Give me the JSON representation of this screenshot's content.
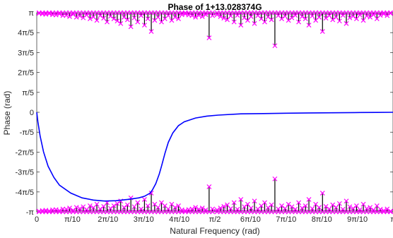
{
  "chart_data": {
    "type": "line",
    "title": "Phase of 1+13.028374G",
    "xlabel": "Natural Frequency (rad)",
    "ylabel": "Phase (rad)",
    "xlim": [
      0,
      3.14159
    ],
    "ylim": [
      -3.14159,
      3.14159
    ],
    "grid": false,
    "x_ticks": [
      {
        "v": 0,
        "label": "0"
      },
      {
        "v": 0.314159,
        "label": "π/10"
      },
      {
        "v": 0.628319,
        "label": "2π/10"
      },
      {
        "v": 0.942478,
        "label": "3π/10"
      },
      {
        "v": 1.256637,
        "label": "4π/10"
      },
      {
        "v": 1.570796,
        "label": "π/2"
      },
      {
        "v": 1.884956,
        "label": "6π/10"
      },
      {
        "v": 2.199115,
        "label": "7π/10"
      },
      {
        "v": 2.513274,
        "label": "8π/10"
      },
      {
        "v": 2.827433,
        "label": "9π/10"
      },
      {
        "v": 3.141593,
        "label": "π"
      }
    ],
    "y_ticks": [
      {
        "v": -3.141593,
        "label": "-π"
      },
      {
        "v": -2.513274,
        "label": "-4π/5"
      },
      {
        "v": -1.884956,
        "label": "-3π/5"
      },
      {
        "v": -1.256637,
        "label": "-2π/5"
      },
      {
        "v": -0.628319,
        "label": "-π/5"
      },
      {
        "v": 0,
        "label": "0"
      },
      {
        "v": 0.628319,
        "label": "π/5"
      },
      {
        "v": 1.256637,
        "label": "2π/5"
      },
      {
        "v": 1.884956,
        "label": "3π/5"
      },
      {
        "v": 2.513274,
        "label": "4π/5"
      },
      {
        "v": 3.141593,
        "label": "π"
      }
    ],
    "series": [
      {
        "style": "line",
        "color": "#0000ff",
        "x": [
          0,
          0.01,
          0.03,
          0.06,
          0.1,
          0.15,
          0.2,
          0.3,
          0.4,
          0.5,
          0.6,
          0.7,
          0.8,
          0.9,
          0.95,
          1.0,
          1.02,
          1.05,
          1.08,
          1.1,
          1.13,
          1.16,
          1.2,
          1.25,
          1.3,
          1.4,
          1.5,
          1.6,
          1.8,
          2.0,
          2.2,
          2.4,
          2.6,
          2.8,
          3.0,
          3.14159
        ],
        "y": [
          0,
          -0.3,
          -0.75,
          -1.25,
          -1.7,
          -2.05,
          -2.3,
          -2.55,
          -2.7,
          -2.77,
          -2.8,
          -2.79,
          -2.75,
          -2.7,
          -2.65,
          -2.55,
          -2.45,
          -2.25,
          -1.95,
          -1.7,
          -1.3,
          -0.95,
          -0.65,
          -0.42,
          -0.3,
          -0.18,
          -0.12,
          -0.09,
          -0.05,
          -0.04,
          -0.03,
          -0.02,
          -0.015,
          -0.01,
          -0.005,
          0
        ]
      },
      {
        "style": "markers",
        "marker": "x",
        "color": "#ff00ff",
        "stems": true,
        "stem_color": "#000000",
        "x": [
          0.02,
          0.05,
          0.08,
          0.11,
          0.14,
          0.17,
          0.2,
          0.23,
          0.26,
          0.29,
          0.32,
          0.35,
          0.38,
          0.41,
          0.44,
          0.47,
          0.5,
          0.53,
          0.56,
          0.59,
          0.62,
          0.65,
          0.68,
          0.71,
          0.74,
          0.77,
          0.8,
          0.83,
          0.86,
          0.89,
          0.92,
          0.95,
          0.98,
          1.01,
          1.04,
          1.07,
          1.1,
          1.13,
          1.16,
          1.19,
          1.22,
          1.25,
          1.28,
          1.31,
          1.34,
          1.37,
          1.4,
          1.43,
          1.46,
          1.49,
          1.52,
          1.55,
          1.59,
          1.62,
          1.65,
          1.68,
          1.71,
          1.74,
          1.77,
          1.8,
          1.83,
          1.86,
          1.89,
          1.92,
          1.95,
          1.98,
          2.01,
          2.04,
          2.07,
          2.1,
          2.13,
          2.16,
          2.19,
          2.22,
          2.25,
          2.28,
          2.31,
          2.34,
          2.37,
          2.4,
          2.43,
          2.46,
          2.49,
          2.52,
          2.55,
          2.58,
          2.61,
          2.64,
          2.67,
          2.7,
          2.73,
          2.76,
          2.79,
          2.82,
          2.85,
          2.88,
          2.91,
          2.94,
          2.97,
          3.0,
          3.03,
          3.06,
          3.09,
          3.12
        ],
        "y_top": [
          3.12,
          3.1,
          3.09,
          3.11,
          3.08,
          3.07,
          3.1,
          3.05,
          3.06,
          3.02,
          3.09,
          3.0,
          3.04,
          2.98,
          3.07,
          2.95,
          3.01,
          2.9,
          3.05,
          2.97,
          2.85,
          3.03,
          2.95,
          2.88,
          2.8,
          3.0,
          2.92,
          2.7,
          2.98,
          2.85,
          3.05,
          2.75,
          2.95,
          2.55,
          2.9,
          3.0,
          2.85,
          2.95,
          3.05,
          2.9,
          3.0,
          2.95,
          3.08,
          3.1,
          3.07,
          3.05,
          3.0,
          3.06,
          3.02,
          3.08,
          2.35,
          3.05,
          3.08,
          3.02,
          2.97,
          2.92,
          3.04,
          2.85,
          3.06,
          2.75,
          2.98,
          2.9,
          3.02,
          2.8,
          3.05,
          2.95,
          2.85,
          3.01,
          2.92,
          2.1,
          3.05,
          2.95,
          3.03,
          2.9,
          2.98,
          3.06,
          2.85,
          3.02,
          2.95,
          2.75,
          3.04,
          2.9,
          3.0,
          2.55,
          2.97,
          3.05,
          2.92,
          3.0,
          2.88,
          3.06,
          2.8,
          2.98,
          3.03,
          2.95,
          3.07,
          2.9,
          3.04,
          3.0,
          3.08,
          2.95,
          3.06,
          3.1,
          3.05,
          3.12
        ],
        "y_bottom": [
          -3.12,
          -3.1,
          -3.09,
          -3.11,
          -3.08,
          -3.07,
          -3.1,
          -3.05,
          -3.06,
          -3.02,
          -3.09,
          -3.0,
          -3.04,
          -2.98,
          -3.07,
          -2.95,
          -3.01,
          -2.9,
          -3.05,
          -2.97,
          -2.85,
          -3.03,
          -2.95,
          -2.88,
          -2.8,
          -3.0,
          -2.92,
          -2.7,
          -2.98,
          -2.85,
          -3.05,
          -2.75,
          -2.95,
          -2.55,
          -2.9,
          -3.0,
          -2.85,
          -2.95,
          -3.05,
          -2.9,
          -3.0,
          -2.95,
          -3.08,
          -3.1,
          -3.07,
          -3.05,
          -3.0,
          -3.06,
          -3.02,
          -3.08,
          -2.35,
          -3.05,
          -3.08,
          -3.02,
          -2.97,
          -2.92,
          -3.04,
          -2.85,
          -3.06,
          -2.75,
          -2.98,
          -2.9,
          -3.02,
          -2.8,
          -3.05,
          -2.95,
          -2.85,
          -3.01,
          -2.92,
          -2.1,
          -3.05,
          -2.95,
          -3.03,
          -2.9,
          -2.98,
          -3.06,
          -2.85,
          -3.02,
          -2.95,
          -2.75,
          -3.04,
          -2.9,
          -3.0,
          -2.55,
          -2.97,
          -3.05,
          -2.92,
          -3.0,
          -2.88,
          -3.06,
          -2.8,
          -2.98,
          -3.03,
          -2.95,
          -3.07,
          -2.9,
          -3.04,
          -3.0,
          -3.08,
          -2.95,
          -3.06,
          -3.1,
          -3.05,
          -3.12
        ]
      }
    ]
  }
}
